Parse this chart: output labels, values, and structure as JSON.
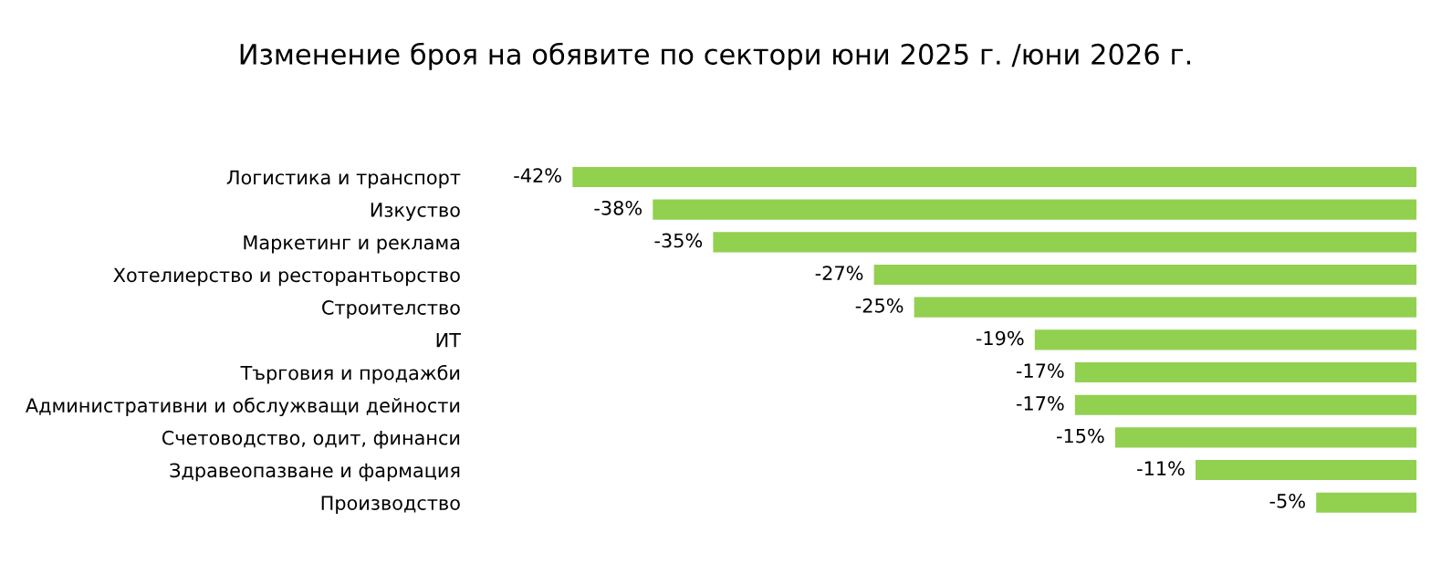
{
  "chart_data": {
    "type": "bar",
    "orientation": "horizontal",
    "title": "Изменение броя на обявите по сектори юни 2025 г. /юни 2026 г.",
    "categories": [
      "Логистика и транспорт",
      "Изкуство",
      "Маркетинг и реклама",
      "Хотелиерство и ресторантьорство",
      "Строителство",
      "ИТ",
      "Търговия и продажби",
      "Административни и обслужващи дейности",
      "Счетоводство, одит, финанси",
      "Здравеопазване и фармация",
      "Производство"
    ],
    "values": [
      -42,
      -38,
      -35,
      -27,
      -25,
      -19,
      -17,
      -17,
      -15,
      -11,
      -5
    ],
    "value_labels": [
      "-42%",
      "-38%",
      "-35%",
      "-27%",
      "-25%",
      "-19%",
      "-17%",
      "-17%",
      "-15%",
      "-11%",
      "-5%"
    ],
    "color": "#92d050",
    "grid": false,
    "legend": false,
    "tick_labels": "y"
  }
}
